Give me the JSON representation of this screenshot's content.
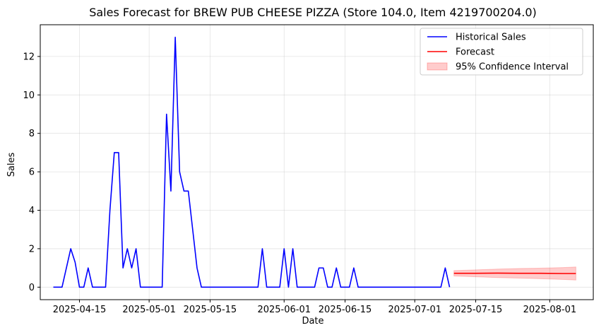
{
  "chart_data": {
    "type": "line",
    "title": "Sales Forecast for BREW PUB CHEESE PIZZA (Store 104.0, Item 4219700204.0)",
    "xlabel": "Date",
    "ylabel": "Sales",
    "x_axis_type": "date",
    "xlim": [
      "2025-04-06",
      "2025-08-11"
    ],
    "ylim": [
      -0.65,
      13.65
    ],
    "x_ticks": [
      "2025-04-15",
      "2025-05-01",
      "2025-05-15",
      "2025-06-01",
      "2025-06-15",
      "2025-07-01",
      "2025-07-15",
      "2025-08-01"
    ],
    "y_ticks": [
      0,
      2,
      4,
      6,
      8,
      10,
      12
    ],
    "grid": true,
    "legend_position": "top-right",
    "series": [
      {
        "name": "Historical Sales",
        "color": "#0000ff",
        "points": [
          [
            "2025-04-09",
            0
          ],
          [
            "2025-04-11",
            0
          ],
          [
            "2025-04-13",
            2
          ],
          [
            "2025-04-14",
            1.3
          ],
          [
            "2025-04-15",
            0
          ],
          [
            "2025-04-16",
            0
          ],
          [
            "2025-04-17",
            1
          ],
          [
            "2025-04-18",
            0
          ],
          [
            "2025-04-21",
            0
          ],
          [
            "2025-04-22",
            4
          ],
          [
            "2025-04-23",
            7
          ],
          [
            "2025-04-24",
            7
          ],
          [
            "2025-04-25",
            1
          ],
          [
            "2025-04-26",
            2
          ],
          [
            "2025-04-27",
            1
          ],
          [
            "2025-04-28",
            2
          ],
          [
            "2025-04-29",
            0
          ],
          [
            "2025-05-04",
            0
          ],
          [
            "2025-05-05",
            9
          ],
          [
            "2025-05-06",
            5
          ],
          [
            "2025-05-07",
            13
          ],
          [
            "2025-05-08",
            6
          ],
          [
            "2025-05-09",
            5
          ],
          [
            "2025-05-10",
            5
          ],
          [
            "2025-05-11",
            3
          ],
          [
            "2025-05-12",
            1
          ],
          [
            "2025-05-13",
            0
          ],
          [
            "2025-05-26",
            0
          ],
          [
            "2025-05-27",
            2
          ],
          [
            "2025-05-28",
            0
          ],
          [
            "2025-05-31",
            0
          ],
          [
            "2025-06-01",
            2
          ],
          [
            "2025-06-02",
            0
          ],
          [
            "2025-06-03",
            2
          ],
          [
            "2025-06-04",
            0
          ],
          [
            "2025-06-08",
            0
          ],
          [
            "2025-06-09",
            1
          ],
          [
            "2025-06-10",
            1
          ],
          [
            "2025-06-11",
            0
          ],
          [
            "2025-06-12",
            0
          ],
          [
            "2025-06-13",
            1
          ],
          [
            "2025-06-14",
            0
          ],
          [
            "2025-06-16",
            0
          ],
          [
            "2025-06-17",
            1
          ],
          [
            "2025-06-18",
            0
          ],
          [
            "2025-07-07",
            0
          ],
          [
            "2025-07-08",
            1
          ],
          [
            "2025-07-09",
            0
          ]
        ]
      },
      {
        "name": "Forecast",
        "color": "#ff0000",
        "points": [
          [
            "2025-07-10",
            0.72
          ],
          [
            "2025-07-15",
            0.72
          ],
          [
            "2025-07-20",
            0.73
          ],
          [
            "2025-07-25",
            0.72
          ],
          [
            "2025-07-30",
            0.72
          ],
          [
            "2025-08-04",
            0.71
          ],
          [
            "2025-08-07",
            0.71
          ]
        ]
      }
    ],
    "confidence_interval": {
      "name": "95% Confidence Interval",
      "color": "#ff0000",
      "points": [
        [
          "2025-07-10",
          0.58,
          0.86
        ],
        [
          "2025-07-15",
          0.54,
          0.9
        ],
        [
          "2025-07-20",
          0.5,
          0.94
        ],
        [
          "2025-07-25",
          0.47,
          0.97
        ],
        [
          "2025-07-30",
          0.44,
          0.99
        ],
        [
          "2025-08-04",
          0.4,
          1.02
        ],
        [
          "2025-08-07",
          0.37,
          1.05
        ]
      ]
    }
  }
}
